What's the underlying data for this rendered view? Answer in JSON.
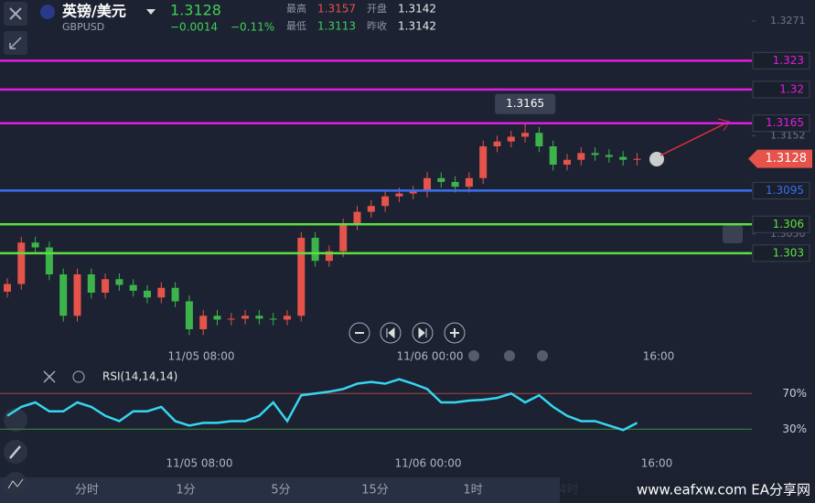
{
  "header": {
    "pair": "英镑/美元",
    "symbol": "GBPUSD",
    "price": 1.3128,
    "change": "−0.0014",
    "change_pct": "−0.11%",
    "stats": [
      {
        "label": "最高",
        "value": 1.3157
      },
      {
        "label": "开盘",
        "value": 1.3142
      },
      {
        "label": "最低",
        "value": 1.3113
      },
      {
        "label": "昨收",
        "value": 1.3142
      }
    ]
  },
  "chart_data": {
    "type": "candlestick",
    "ylim": [
      1.2932,
      1.3293
    ],
    "yticks": [
      1.3271,
      1.3152,
      {
        "value": 1.305,
        "label": "1.3050"
      }
    ],
    "xtick_labels": [
      "11/05 08:00",
      "11/06 00:00",
      "16:00"
    ],
    "up_color": "#e5534b",
    "down_color": "#3cb44b",
    "open": [
      1.299,
      1.2998,
      1.3041,
      1.3036,
      1.3008,
      1.2965,
      1.3008,
      1.2989,
      1.3003,
      1.2997,
      1.2991,
      1.2984,
      1.2994,
      1.298,
      1.2951,
      1.2965,
      1.2961,
      1.2962,
      1.2965,
      1.2962,
      1.2961,
      1.2965,
      1.3046,
      1.3022,
      1.3032,
      1.306,
      1.3073,
      1.3079,
      1.3089,
      1.3092,
      1.3094,
      1.3108,
      1.3104,
      1.3099,
      1.3108,
      1.3141,
      1.3146,
      1.3151,
      1.3155,
      1.3141,
      1.3122,
      1.3127,
      1.3134,
      1.3132,
      1.313,
      1.3127
    ],
    "high": [
      1.3004,
      1.3047,
      1.3047,
      1.3042,
      1.3014,
      1.3014,
      1.3014,
      1.3009,
      1.3009,
      1.3003,
      1.2997,
      1.3,
      1.3,
      1.2986,
      1.2971,
      1.2971,
      1.2968,
      1.2971,
      1.2971,
      1.2968,
      1.2971,
      1.3052,
      1.3052,
      1.3038,
      1.3066,
      1.3079,
      1.3085,
      1.3095,
      1.3098,
      1.31,
      1.3114,
      1.3114,
      1.311,
      1.3114,
      1.3147,
      1.3152,
      1.3157,
      1.3165,
      1.3161,
      1.3147,
      1.3133,
      1.314,
      1.314,
      1.3138,
      1.3136,
      1.3134
    ],
    "low": [
      1.2984,
      1.2992,
      1.303,
      1.3002,
      1.2959,
      1.2959,
      1.2983,
      1.2983,
      1.2991,
      1.2985,
      1.2978,
      1.2978,
      1.2974,
      1.2945,
      1.2945,
      1.2955,
      1.2955,
      1.2956,
      1.2956,
      1.2955,
      1.2955,
      1.2959,
      1.3016,
      1.3016,
      1.3026,
      1.3054,
      1.3067,
      1.3073,
      1.3083,
      1.3086,
      1.3088,
      1.3098,
      1.3093,
      1.3093,
      1.3102,
      1.3135,
      1.314,
      1.3145,
      1.3135,
      1.3116,
      1.3116,
      1.3121,
      1.3126,
      1.3124,
      1.3121,
      1.3121
    ],
    "close": [
      1.2998,
      1.3041,
      1.3036,
      1.3008,
      1.2965,
      1.3008,
      1.2989,
      1.3003,
      1.2997,
      1.2991,
      1.2984,
      1.2994,
      1.298,
      1.2951,
      1.2965,
      1.2961,
      1.2962,
      1.2965,
      1.2962,
      1.2961,
      1.2965,
      1.3046,
      1.3022,
      1.3032,
      1.306,
      1.3073,
      1.3079,
      1.3089,
      1.3092,
      1.3094,
      1.3108,
      1.3104,
      1.3099,
      1.3108,
      1.3141,
      1.3146,
      1.3151,
      1.3155,
      1.3141,
      1.3122,
      1.3127,
      1.3134,
      1.3132,
      1.313,
      1.3127,
      1.3128
    ],
    "levels": [
      {
        "value": 1.323,
        "color": "#e01ee0"
      },
      {
        "value": 1.32,
        "color": "#e01ee0"
      },
      {
        "value": 1.3165,
        "color": "#e01ee0"
      },
      {
        "value": 1.3095,
        "color": "#3a6ff0"
      },
      {
        "value": 1.306,
        "color": "#5ee040"
      },
      {
        "value": 1.303,
        "color": "#5ee040"
      }
    ]
  },
  "rsi": {
    "title": "RSI(14,14,14)",
    "color": "#36d6f0",
    "ylim": [
      0,
      100
    ],
    "levels": [
      {
        "value": 70,
        "label": "70%",
        "color": "#a84444"
      },
      {
        "value": 30,
        "label": "30%",
        "color": "#3c8c3c"
      }
    ],
    "values": [
      45,
      55,
      60,
      50,
      50,
      60,
      55,
      45,
      39,
      50,
      50,
      55,
      39,
      34,
      37,
      37,
      39,
      39,
      45,
      60,
      39,
      68,
      70,
      72,
      75,
      81,
      83,
      81,
      86,
      81,
      75,
      60,
      60,
      62,
      63,
      65,
      70,
      60,
      68,
      55,
      45,
      39,
      39,
      34,
      29,
      37
    ]
  },
  "tabs": [
    "分时",
    "1分",
    "5分",
    "15分",
    "1时",
    "4时"
  ],
  "watermark": "www.eafxw.com  EA分享网"
}
